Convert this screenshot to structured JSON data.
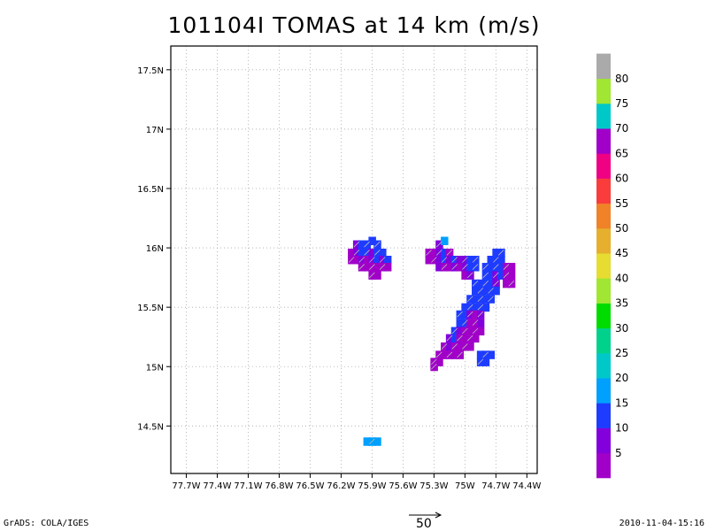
{
  "title": "101104I TOMAS at 14 km (m/s)",
  "footer": {
    "left": "GrADS: COLA/IGES",
    "right": "2010-11-04-15:16"
  },
  "reference_vector": {
    "label": "50",
    "magnitude": 50
  },
  "colors": {
    "colorbar": [
      "#a000c8",
      "#8200dc",
      "#1e3cff",
      "#00a0ff",
      "#00c8c8",
      "#00d28c",
      "#00dc00",
      "#a0e632",
      "#e6dc32",
      "#e6af2d",
      "#f08228",
      "#fa3c3c",
      "#f00082",
      "#a000c8",
      "#00c8c8",
      "#a0e632",
      "#aaaaaa"
    ]
  },
  "chart_data": {
    "type": "heatmap",
    "title": "101104I TOMAS at 14 km (m/s)",
    "xlabel": "",
    "ylabel": "",
    "xlim": [
      -77.85,
      -74.3
    ],
    "ylim": [
      14.1,
      17.7
    ],
    "grid": true,
    "x_ticks": [
      -77.7,
      -77.4,
      -77.1,
      -76.8,
      -76.5,
      -76.2,
      -75.9,
      -75.6,
      -75.3,
      -75.0,
      -74.7,
      -74.4
    ],
    "x_tick_labels": [
      "77.7W",
      "77.4W",
      "77.1W",
      "76.8W",
      "76.5W",
      "76.2W",
      "75.9W",
      "75.6W",
      "75.3W",
      "75W",
      "74.7W",
      "74.4W"
    ],
    "y_ticks": [
      14.5,
      15.0,
      15.5,
      16.0,
      16.5,
      17.0,
      17.5
    ],
    "y_tick_labels": [
      "14.5N",
      "15N",
      "15.5N",
      "16N",
      "16.5N",
      "17N",
      "17.5N"
    ],
    "colorbar_labels": [
      "5",
      "10",
      "15",
      "20",
      "25",
      "30",
      "35",
      "40",
      "45",
      "50",
      "55",
      "60",
      "65",
      "70",
      "75",
      "80"
    ],
    "cells": [
      {
        "lon": -76.05,
        "lat": 16.03,
        "level": 1
      },
      {
        "lon": -76.0,
        "lat": 16.03,
        "level": 2
      },
      {
        "lon": -75.95,
        "lat": 16.03,
        "level": 2
      },
      {
        "lon": -75.9,
        "lat": 16.06,
        "level": 2
      },
      {
        "lon": -75.85,
        "lat": 16.03,
        "level": 2
      },
      {
        "lon": -76.1,
        "lat": 15.96,
        "level": 0
      },
      {
        "lon": -76.05,
        "lat": 15.96,
        "level": 1
      },
      {
        "lon": -76.0,
        "lat": 15.96,
        "level": 2
      },
      {
        "lon": -75.95,
        "lat": 15.96,
        "level": 2
      },
      {
        "lon": -75.9,
        "lat": 15.96,
        "level": 1
      },
      {
        "lon": -75.85,
        "lat": 15.96,
        "level": 2
      },
      {
        "lon": -75.8,
        "lat": 15.96,
        "level": 2
      },
      {
        "lon": -76.1,
        "lat": 15.9,
        "level": 0
      },
      {
        "lon": -76.05,
        "lat": 15.9,
        "level": 0
      },
      {
        "lon": -76.0,
        "lat": 15.9,
        "level": 1
      },
      {
        "lon": -75.95,
        "lat": 15.9,
        "level": 0
      },
      {
        "lon": -75.9,
        "lat": 15.9,
        "level": 1
      },
      {
        "lon": -75.85,
        "lat": 15.9,
        "level": 2
      },
      {
        "lon": -75.8,
        "lat": 15.9,
        "level": 1
      },
      {
        "lon": -75.75,
        "lat": 15.9,
        "level": 2
      },
      {
        "lon": -76.0,
        "lat": 15.84,
        "level": 0
      },
      {
        "lon": -75.95,
        "lat": 15.84,
        "level": 0
      },
      {
        "lon": -75.9,
        "lat": 15.84,
        "level": 0
      },
      {
        "lon": -75.85,
        "lat": 15.84,
        "level": 0
      },
      {
        "lon": -75.8,
        "lat": 15.84,
        "level": 0
      },
      {
        "lon": -75.75,
        "lat": 15.84,
        "level": 0
      },
      {
        "lon": -75.9,
        "lat": 15.77,
        "level": 0
      },
      {
        "lon": -75.85,
        "lat": 15.77,
        "level": 0
      },
      {
        "lon": -75.35,
        "lat": 15.96,
        "level": 0
      },
      {
        "lon": -75.3,
        "lat": 15.96,
        "level": 0
      },
      {
        "lon": -75.25,
        "lat": 16.03,
        "level": 1
      },
      {
        "lon": -75.2,
        "lat": 16.06,
        "level": 3
      },
      {
        "lon": -75.25,
        "lat": 15.96,
        "level": 1
      },
      {
        "lon": -75.2,
        "lat": 15.96,
        "level": 2
      },
      {
        "lon": -75.15,
        "lat": 15.96,
        "level": 0
      },
      {
        "lon": -75.35,
        "lat": 15.9,
        "level": 0
      },
      {
        "lon": -75.3,
        "lat": 15.9,
        "level": 0
      },
      {
        "lon": -75.25,
        "lat": 15.9,
        "level": 1
      },
      {
        "lon": -75.2,
        "lat": 15.9,
        "level": 2
      },
      {
        "lon": -75.15,
        "lat": 15.9,
        "level": 1
      },
      {
        "lon": -75.1,
        "lat": 15.9,
        "level": 2
      },
      {
        "lon": -75.05,
        "lat": 15.9,
        "level": 1
      },
      {
        "lon": -75.0,
        "lat": 15.9,
        "level": 1
      },
      {
        "lon": -74.95,
        "lat": 15.9,
        "level": 2
      },
      {
        "lon": -74.9,
        "lat": 15.9,
        "level": 2
      },
      {
        "lon": -75.25,
        "lat": 15.84,
        "level": 1
      },
      {
        "lon": -75.2,
        "lat": 15.84,
        "level": 0
      },
      {
        "lon": -75.15,
        "lat": 15.84,
        "level": 0
      },
      {
        "lon": -75.1,
        "lat": 15.84,
        "level": 1
      },
      {
        "lon": -75.05,
        "lat": 15.84,
        "level": 0
      },
      {
        "lon": -75.0,
        "lat": 15.84,
        "level": 1
      },
      {
        "lon": -74.95,
        "lat": 15.84,
        "level": 2
      },
      {
        "lon": -74.9,
        "lat": 15.84,
        "level": 2
      },
      {
        "lon": -75.0,
        "lat": 15.77,
        "level": 0
      },
      {
        "lon": -74.95,
        "lat": 15.77,
        "level": 1
      },
      {
        "lon": -74.7,
        "lat": 15.96,
        "level": 2
      },
      {
        "lon": -74.65,
        "lat": 15.96,
        "level": 2
      },
      {
        "lon": -74.75,
        "lat": 15.9,
        "level": 2
      },
      {
        "lon": -74.7,
        "lat": 15.9,
        "level": 2
      },
      {
        "lon": -74.65,
        "lat": 15.9,
        "level": 2
      },
      {
        "lon": -74.8,
        "lat": 15.84,
        "level": 2
      },
      {
        "lon": -74.75,
        "lat": 15.84,
        "level": 2
      },
      {
        "lon": -74.7,
        "lat": 15.84,
        "level": 2
      },
      {
        "lon": -74.65,
        "lat": 15.84,
        "level": 2
      },
      {
        "lon": -74.6,
        "lat": 15.84,
        "level": 0
      },
      {
        "lon": -74.55,
        "lat": 15.84,
        "level": 0
      },
      {
        "lon": -74.8,
        "lat": 15.77,
        "level": 2
      },
      {
        "lon": -74.75,
        "lat": 15.77,
        "level": 2
      },
      {
        "lon": -74.7,
        "lat": 15.77,
        "level": 1
      },
      {
        "lon": -74.65,
        "lat": 15.77,
        "level": 2
      },
      {
        "lon": -74.6,
        "lat": 15.77,
        "level": 0
      },
      {
        "lon": -74.55,
        "lat": 15.77,
        "level": 0
      },
      {
        "lon": -74.9,
        "lat": 15.7,
        "level": 2
      },
      {
        "lon": -74.85,
        "lat": 15.7,
        "level": 2
      },
      {
        "lon": -74.8,
        "lat": 15.7,
        "level": 2
      },
      {
        "lon": -74.75,
        "lat": 15.7,
        "level": 2
      },
      {
        "lon": -74.7,
        "lat": 15.7,
        "level": 1
      },
      {
        "lon": -74.6,
        "lat": 15.7,
        "level": 0
      },
      {
        "lon": -74.55,
        "lat": 15.7,
        "level": 0
      },
      {
        "lon": -74.9,
        "lat": 15.64,
        "level": 2
      },
      {
        "lon": -74.85,
        "lat": 15.64,
        "level": 2
      },
      {
        "lon": -74.8,
        "lat": 15.64,
        "level": 2
      },
      {
        "lon": -74.75,
        "lat": 15.64,
        "level": 2
      },
      {
        "lon": -74.7,
        "lat": 15.64,
        "level": 2
      },
      {
        "lon": -74.95,
        "lat": 15.57,
        "level": 2
      },
      {
        "lon": -74.9,
        "lat": 15.57,
        "level": 2
      },
      {
        "lon": -74.85,
        "lat": 15.57,
        "level": 2
      },
      {
        "lon": -74.8,
        "lat": 15.57,
        "level": 2
      },
      {
        "lon": -74.75,
        "lat": 15.57,
        "level": 2
      },
      {
        "lon": -75.0,
        "lat": 15.5,
        "level": 2
      },
      {
        "lon": -74.95,
        "lat": 15.5,
        "level": 2
      },
      {
        "lon": -74.9,
        "lat": 15.5,
        "level": 2
      },
      {
        "lon": -74.85,
        "lat": 15.5,
        "level": 2
      },
      {
        "lon": -74.8,
        "lat": 15.5,
        "level": 2
      },
      {
        "lon": -75.05,
        "lat": 15.44,
        "level": 2
      },
      {
        "lon": -75.0,
        "lat": 15.44,
        "level": 2
      },
      {
        "lon": -74.95,
        "lat": 15.44,
        "level": 1
      },
      {
        "lon": -74.9,
        "lat": 15.44,
        "level": 0
      },
      {
        "lon": -74.85,
        "lat": 15.44,
        "level": 1
      },
      {
        "lon": -75.05,
        "lat": 15.37,
        "level": 2
      },
      {
        "lon": -75.0,
        "lat": 15.37,
        "level": 2
      },
      {
        "lon": -74.95,
        "lat": 15.37,
        "level": 0
      },
      {
        "lon": -74.9,
        "lat": 15.37,
        "level": 0
      },
      {
        "lon": -74.85,
        "lat": 15.37,
        "level": 1
      },
      {
        "lon": -75.1,
        "lat": 15.3,
        "level": 2
      },
      {
        "lon": -75.05,
        "lat": 15.3,
        "level": 1
      },
      {
        "lon": -75.0,
        "lat": 15.3,
        "level": 0
      },
      {
        "lon": -74.95,
        "lat": 15.3,
        "level": 0
      },
      {
        "lon": -74.9,
        "lat": 15.3,
        "level": 0
      },
      {
        "lon": -74.85,
        "lat": 15.3,
        "level": 0
      },
      {
        "lon": -75.15,
        "lat": 15.24,
        "level": 1
      },
      {
        "lon": -75.1,
        "lat": 15.24,
        "level": 2
      },
      {
        "lon": -75.05,
        "lat": 15.24,
        "level": 0
      },
      {
        "lon": -75.0,
        "lat": 15.24,
        "level": 0
      },
      {
        "lon": -74.95,
        "lat": 15.24,
        "level": 0
      },
      {
        "lon": -74.9,
        "lat": 15.24,
        "level": 0
      },
      {
        "lon": -75.2,
        "lat": 15.17,
        "level": 0
      },
      {
        "lon": -75.15,
        "lat": 15.17,
        "level": 1
      },
      {
        "lon": -75.1,
        "lat": 15.17,
        "level": 0
      },
      {
        "lon": -75.05,
        "lat": 15.17,
        "level": 0
      },
      {
        "lon": -75.0,
        "lat": 15.17,
        "level": 0
      },
      {
        "lon": -74.95,
        "lat": 15.17,
        "level": 0
      },
      {
        "lon": -75.25,
        "lat": 15.1,
        "level": 0
      },
      {
        "lon": -75.2,
        "lat": 15.1,
        "level": 0
      },
      {
        "lon": -75.15,
        "lat": 15.1,
        "level": 0
      },
      {
        "lon": -75.1,
        "lat": 15.1,
        "level": 0
      },
      {
        "lon": -75.05,
        "lat": 15.1,
        "level": 0
      },
      {
        "lon": -74.85,
        "lat": 15.1,
        "level": 2
      },
      {
        "lon": -74.8,
        "lat": 15.1,
        "level": 2
      },
      {
        "lon": -74.75,
        "lat": 15.1,
        "level": 2
      },
      {
        "lon": -75.3,
        "lat": 15.04,
        "level": 0
      },
      {
        "lon": -75.25,
        "lat": 15.04,
        "level": 0
      },
      {
        "lon": -74.85,
        "lat": 15.04,
        "level": 2
      },
      {
        "lon": -74.8,
        "lat": 15.04,
        "level": 2
      },
      {
        "lon": -75.3,
        "lat": 15.0,
        "level": 0
      },
      {
        "lon": -75.95,
        "lat": 14.37,
        "level": 3
      },
      {
        "lon": -75.9,
        "lat": 14.37,
        "level": 3
      },
      {
        "lon": -75.85,
        "lat": 14.37,
        "level": 3
      }
    ]
  }
}
